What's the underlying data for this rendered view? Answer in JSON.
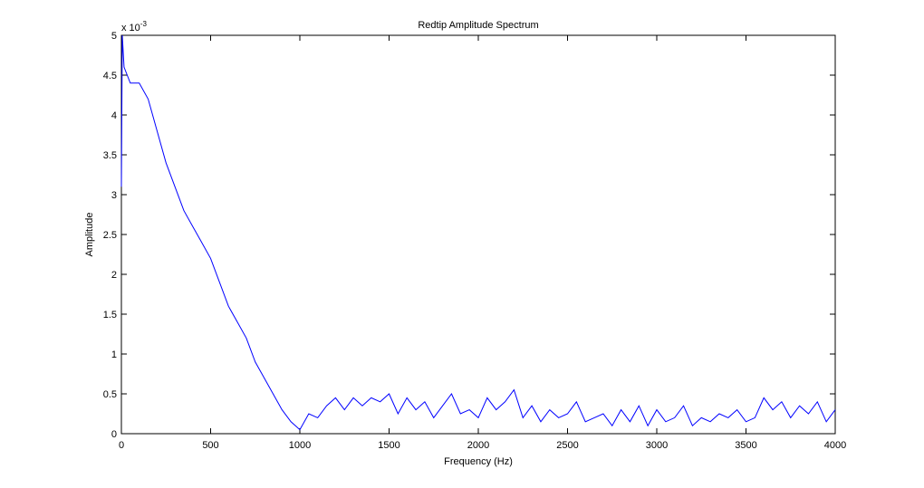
{
  "chart_data": {
    "type": "line",
    "title": "Redtip Amplitude Spectrum",
    "x_label": "Frequency (Hz)",
    "y_label": "Amplitude",
    "y_exponent_base": "x 10",
    "y_exponent": "-3",
    "x": [
      0,
      5,
      15,
      50,
      100,
      150,
      200,
      250,
      300,
      350,
      400,
      450,
      500,
      550,
      600,
      650,
      700,
      750,
      800,
      850,
      900,
      950,
      1000,
      1050,
      1100,
      1150,
      1200,
      1250,
      1300,
      1350,
      1400,
      1450,
      1500,
      1550,
      1600,
      1650,
      1700,
      1750,
      1800,
      1850,
      1900,
      1950,
      2000,
      2050,
      2100,
      2150,
      2200,
      2250,
      2300,
      2350,
      2400,
      2450,
      2500,
      2550,
      2600,
      2650,
      2700,
      2750,
      2800,
      2850,
      2900,
      2950,
      3000,
      3050,
      3100,
      3150,
      3200,
      3250,
      3300,
      3350,
      3400,
      3450,
      3500,
      3550,
      3600,
      3650,
      3700,
      3750,
      3800,
      3850,
      3900,
      3950,
      4000
    ],
    "series": [
      {
        "color": "#0000ff",
        "values": [
          3.1,
          5.0,
          4.6,
          4.4,
          4.4,
          4.2,
          3.8,
          3.4,
          3.1,
          2.8,
          2.6,
          2.4,
          2.2,
          1.9,
          1.6,
          1.4,
          1.2,
          0.9,
          0.7,
          0.5,
          0.3,
          0.15,
          0.05,
          0.25,
          0.2,
          0.35,
          0.45,
          0.3,
          0.45,
          0.35,
          0.45,
          0.4,
          0.5,
          0.25,
          0.45,
          0.3,
          0.4,
          0.2,
          0.35,
          0.5,
          0.25,
          0.3,
          0.2,
          0.45,
          0.3,
          0.4,
          0.55,
          0.2,
          0.35,
          0.15,
          0.3,
          0.2,
          0.25,
          0.4,
          0.15,
          0.2,
          0.25,
          0.1,
          0.3,
          0.15,
          0.35,
          0.1,
          0.3,
          0.15,
          0.2,
          0.35,
          0.1,
          0.2,
          0.15,
          0.25,
          0.2,
          0.3,
          0.15,
          0.2,
          0.45,
          0.3,
          0.4,
          0.2,
          0.35,
          0.25,
          0.4,
          0.15,
          0.3
        ]
      }
    ],
    "xlim": [
      0,
      4000
    ],
    "ylim": [
      0,
      5
    ],
    "xticks": [
      0,
      500,
      1000,
      1500,
      2000,
      2500,
      3000,
      3500,
      4000
    ],
    "yticks": [
      0,
      0.5,
      1,
      1.5,
      2,
      2.5,
      3,
      3.5,
      4,
      4.5,
      5
    ]
  }
}
